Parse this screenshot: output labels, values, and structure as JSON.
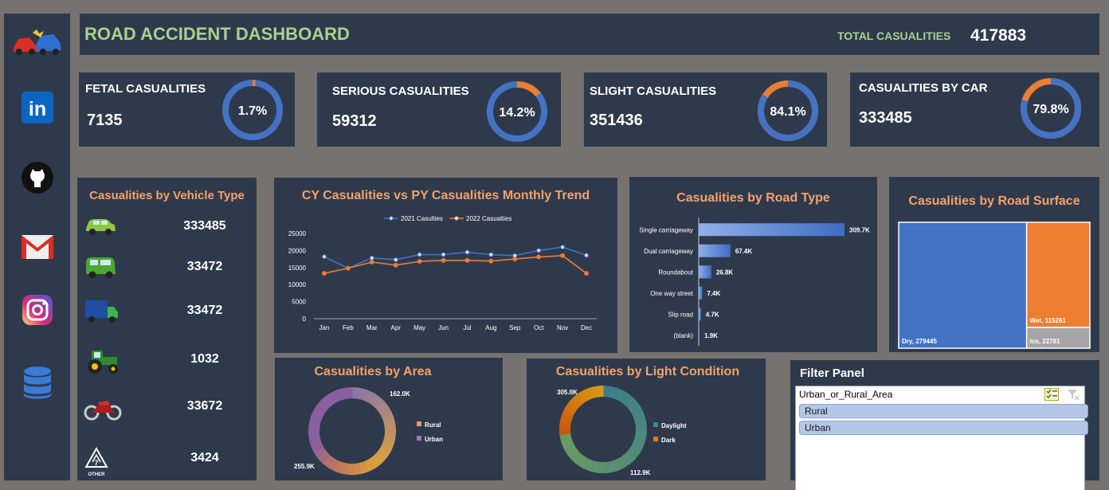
{
  "header": {
    "title": "ROAD ACCIDENT DASHBOARD",
    "total_label": "TOTAL CASUALITIES",
    "total_value": "417883"
  },
  "sidebar": {
    "items": [
      {
        "icon": "car-crash-icon"
      },
      {
        "icon": "linkedin-icon",
        "label": "in"
      },
      {
        "icon": "github-icon"
      },
      {
        "icon": "gmail-icon"
      },
      {
        "icon": "instagram-icon"
      },
      {
        "icon": "database-icon"
      }
    ]
  },
  "kpis": [
    {
      "label": "FETAL CASUALITIES",
      "value": "7135",
      "pct_label": "1.7%",
      "pct": 1.7
    },
    {
      "label": "SERIOUS CASUALITIES",
      "value": "59312",
      "pct_label": "14.2%",
      "pct": 14.2
    },
    {
      "label": "SLIGHT CASUALITIES",
      "value": "351436",
      "pct_label": "84.1%",
      "pct": 84.1
    },
    {
      "label": "CASUALITIES BY CAR",
      "value": "333485",
      "pct_label": "79.8%",
      "pct": 79.8
    }
  ],
  "vehicle": {
    "title": "Casualities by Vehicle Type",
    "rows": [
      {
        "icon": "car-icon",
        "value": "333485"
      },
      {
        "icon": "van-icon",
        "value": "33472"
      },
      {
        "icon": "truck-icon",
        "value": "33472"
      },
      {
        "icon": "tractor-icon",
        "value": "1032"
      },
      {
        "icon": "motorcycle-icon",
        "value": "33672"
      },
      {
        "icon": "other-icon",
        "value": "3424",
        "tag": "OTHER"
      }
    ]
  },
  "colors": {
    "panel": "#2e3a4c",
    "orange": "#ed7d31",
    "blue": "#4472c4",
    "title_orange": "#f4a26a",
    "green": "#a9d18e",
    "grey": "#a5a5a5"
  },
  "chart_data": [
    {
      "type": "line",
      "title": "CY Casualities vs PY Casualities Monthly Trend",
      "categories": [
        "Jan",
        "Feb",
        "Mar",
        "Apr",
        "May",
        "Jun",
        "Jul",
        "Aug",
        "Sep",
        "Oct",
        "Nov",
        "Dec"
      ],
      "series": [
        {
          "name": "2021 Casulties",
          "color": "#4472c4",
          "values": [
            18200,
            14800,
            17800,
            17300,
            18800,
            18800,
            19500,
            18800,
            18500,
            20000,
            21000,
            18600
          ]
        },
        {
          "name": "2022 Casualties",
          "color": "#ed7d31",
          "values": [
            13300,
            14800,
            16600,
            15700,
            16800,
            17100,
            17100,
            16900,
            17500,
            18100,
            18500,
            13300
          ]
        }
      ],
      "ylim": [
        0,
        25000
      ],
      "yticks": [
        "0",
        "5000",
        "10000",
        "15000",
        "20000",
        "25000"
      ],
      "legend": "top"
    },
    {
      "type": "bar",
      "title": "Casualities by Road Type",
      "categories": [
        "Single carriageway",
        "Dual carriageway",
        "Roundabout",
        "One way street",
        "Slip road",
        "(blank)"
      ],
      "values": [
        309.7,
        67.4,
        26.8,
        7.4,
        4.7,
        1.9
      ],
      "labels": [
        "309.7K",
        "67.4K",
        "26.8K",
        "7.4K",
        "4.7K",
        "1.9K"
      ],
      "orientation": "horizontal"
    },
    {
      "type": "treemap",
      "title": "Casualities by Road Surface",
      "items": [
        {
          "name": "Dry",
          "value": 279445,
          "label": "Dry, 279445",
          "color": "#4472c4"
        },
        {
          "name": "Wet",
          "value": 115261,
          "label": "Wet, 115261",
          "color": "#ed7d31"
        },
        {
          "name": "Ice",
          "value": 22781,
          "label": "Ice, 22781",
          "color": "#a5a5a5"
        }
      ]
    },
    {
      "type": "pie",
      "title": "Casualities by Area",
      "items": [
        {
          "name": "Rural",
          "value": 162.0,
          "label": "162.0K"
        },
        {
          "name": "Urban",
          "value": 255.9,
          "label": "255.9K"
        }
      ],
      "legend": "right"
    },
    {
      "type": "pie",
      "title": "Casualities by Light Condition",
      "items": [
        {
          "name": "Daylight",
          "value": 305.0,
          "label": "305.0K"
        },
        {
          "name": "Dark",
          "value": 112.9,
          "label": "112.9K"
        }
      ],
      "legend": "right"
    }
  ],
  "filter": {
    "title": "Filter Panel",
    "field": "Urban_or_Rural_Area",
    "items": [
      "Rural",
      "Urban"
    ]
  }
}
